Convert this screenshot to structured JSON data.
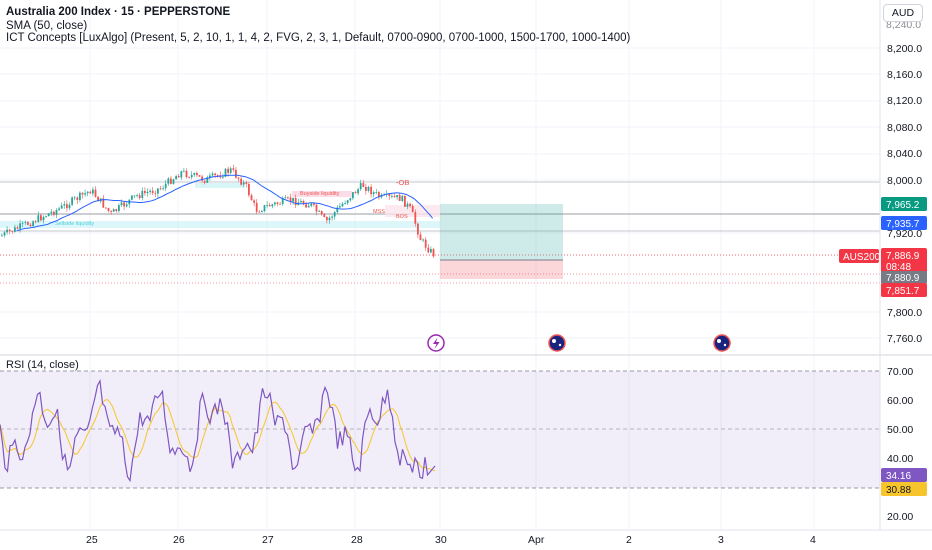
{
  "header": {
    "symbol_line": "Australia 200 Index · 15 · PEPPERSTONE",
    "sma_line": "SMA (50, close)",
    "ict_line": "ICT Concepts [LuxAlgo] (Present, 5, 2, 10, 1, 1, 4, 2, FVG, 2, 3, 1, Default, 0700-0900, 0700-1000, 1500-1700, 1000-1400)"
  },
  "currency_button": "AUD",
  "price_axis": {
    "ticks": [
      "8,200.0",
      "8,160.0",
      "8,120.0",
      "8,080.0",
      "8,040.0",
      "8,000.0",
      "7,920.0",
      "7,800.0",
      "7,760.0"
    ],
    "partial_top_tick": "8,240.0"
  },
  "price_badges": {
    "target": "7,965.2",
    "sma": "7,935.7",
    "symbol_tag": "AUS200",
    "last_price": "7,886.9",
    "countdown": "08:48",
    "entry": "7,880.9",
    "stop": "7,851.7"
  },
  "rsi": {
    "title": "RSI (14, close)",
    "ticks": [
      "70.00",
      "60.00",
      "50.00",
      "40.00",
      "20.00"
    ],
    "value": "34.16",
    "ma_value": "30.88"
  },
  "time_axis": [
    "25",
    "26",
    "27",
    "28",
    "30",
    "Apr",
    "2",
    "3",
    "4"
  ],
  "annotations": {
    "ob": "-OB",
    "buyside": "Buyside liquidity",
    "sellside": "Sellside liquidity",
    "mss": "MSS",
    "bos": "BOS"
  },
  "colors": {
    "up": "#26a69a",
    "down": "#ef5350",
    "sma": "#2962ff",
    "rsi": "#7e57c2",
    "rsi_ma": "#f7c52b",
    "last_price": "#f23645",
    "axis_gray": "#787b86"
  },
  "event_icons": [
    "lightning-icon",
    "australia-flag-icon",
    "australia-flag-icon"
  ]
}
